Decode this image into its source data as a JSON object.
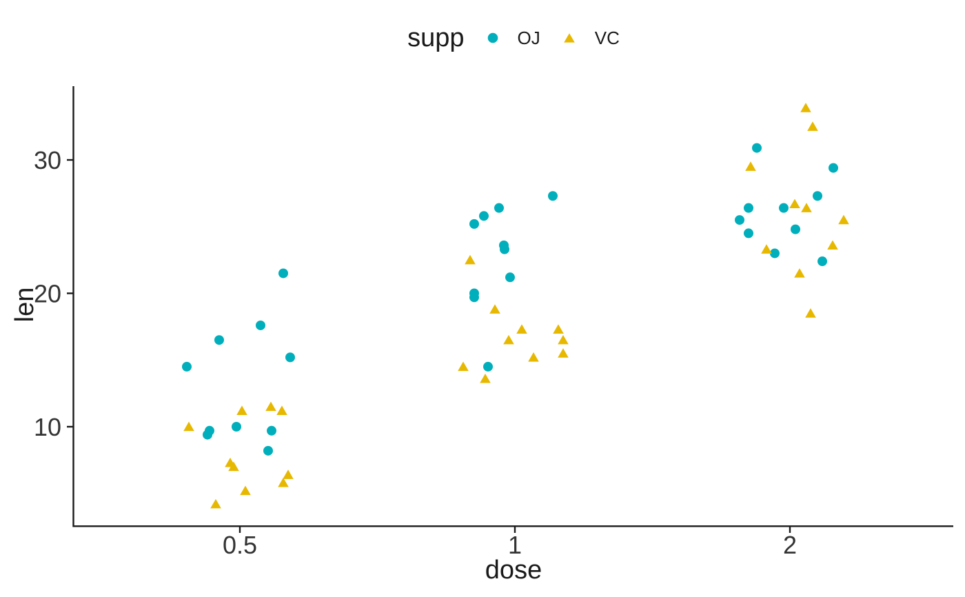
{
  "chart_data": {
    "type": "scatter",
    "title": "",
    "xlabel": "dose",
    "ylabel": "len",
    "legend_title": "supp",
    "legend_position": "top-center",
    "grid": false,
    "x_scale": "log2",
    "x_ticks": [
      0.5,
      1,
      2
    ],
    "x_tick_labels": [
      "0.5",
      "1",
      "2"
    ],
    "y_ticks": [
      10,
      20,
      30
    ],
    "y_tick_labels": [
      "10",
      "20",
      "30"
    ],
    "x_domain_px_note": "jitter offsets (j) are horizontal jitter around each dose position",
    "series": [
      {
        "name": "OJ",
        "marker": "circle",
        "color": "#00AFBB",
        "points": [
          {
            "dose": 0.5,
            "len": 21.5,
            "j": 63
          },
          {
            "dose": 0.5,
            "len": 17.6,
            "j": 30
          },
          {
            "dose": 0.5,
            "len": 16.5,
            "j": -30
          },
          {
            "dose": 0.5,
            "len": 15.2,
            "j": 73
          },
          {
            "dose": 0.5,
            "len": 14.5,
            "j": -77
          },
          {
            "dose": 0.5,
            "len": 10.0,
            "j": -5
          },
          {
            "dose": 0.5,
            "len": 9.7,
            "j": -44
          },
          {
            "dose": 0.5,
            "len": 9.7,
            "j": 46
          },
          {
            "dose": 0.5,
            "len": 9.4,
            "j": -47
          },
          {
            "dose": 0.5,
            "len": 8.2,
            "j": 41
          },
          {
            "dose": 1,
            "len": 27.3,
            "j": 55
          },
          {
            "dose": 1,
            "len": 26.4,
            "j": -23
          },
          {
            "dose": 1,
            "len": 25.8,
            "j": -45
          },
          {
            "dose": 1,
            "len": 25.2,
            "j": -59
          },
          {
            "dose": 1,
            "len": 23.6,
            "j": -16
          },
          {
            "dose": 1,
            "len": 23.3,
            "j": -15
          },
          {
            "dose": 1,
            "len": 21.2,
            "j": -7
          },
          {
            "dose": 1,
            "len": 20.0,
            "j": -59
          },
          {
            "dose": 1,
            "len": 19.7,
            "j": -59
          },
          {
            "dose": 1,
            "len": 14.5,
            "j": -39
          },
          {
            "dose": 2,
            "len": 30.9,
            "j": -48
          },
          {
            "dose": 2,
            "len": 29.4,
            "j": 63
          },
          {
            "dose": 2,
            "len": 27.3,
            "j": 40
          },
          {
            "dose": 2,
            "len": 26.4,
            "j": -60
          },
          {
            "dose": 2,
            "len": 26.4,
            "j": -9
          },
          {
            "dose": 2,
            "len": 25.5,
            "j": -73
          },
          {
            "dose": 2,
            "len": 24.8,
            "j": 8
          },
          {
            "dose": 2,
            "len": 24.5,
            "j": -60
          },
          {
            "dose": 2,
            "len": 23.0,
            "j": -22
          },
          {
            "dose": 2,
            "len": 22.4,
            "j": 47
          }
        ]
      },
      {
        "name": "VC",
        "marker": "triangle",
        "color": "#E7B800",
        "points": [
          {
            "dose": 0.5,
            "len": 11.5,
            "j": 45
          },
          {
            "dose": 0.5,
            "len": 11.2,
            "j": 3
          },
          {
            "dose": 0.5,
            "len": 11.2,
            "j": 61
          },
          {
            "dose": 0.5,
            "len": 10.0,
            "j": -74
          },
          {
            "dose": 0.5,
            "len": 7.3,
            "j": -14
          },
          {
            "dose": 0.5,
            "len": 7.0,
            "j": -9
          },
          {
            "dose": 0.5,
            "len": 6.4,
            "j": 70
          },
          {
            "dose": 0.5,
            "len": 5.8,
            "j": 63
          },
          {
            "dose": 0.5,
            "len": 5.2,
            "j": 8
          },
          {
            "dose": 0.5,
            "len": 4.2,
            "j": -35
          },
          {
            "dose": 1,
            "len": 22.5,
            "j": -65
          },
          {
            "dose": 1,
            "len": 18.8,
            "j": -29
          },
          {
            "dose": 1,
            "len": 17.3,
            "j": 10
          },
          {
            "dose": 1,
            "len": 17.3,
            "j": 63
          },
          {
            "dose": 1,
            "len": 16.5,
            "j": -9
          },
          {
            "dose": 1,
            "len": 16.5,
            "j": 70
          },
          {
            "dose": 1,
            "len": 15.5,
            "j": 70
          },
          {
            "dose": 1,
            "len": 15.2,
            "j": 27
          },
          {
            "dose": 1,
            "len": 14.5,
            "j": -75
          },
          {
            "dose": 1,
            "len": 13.6,
            "j": -43
          },
          {
            "dose": 2,
            "len": 33.9,
            "j": 23
          },
          {
            "dose": 2,
            "len": 32.5,
            "j": 33
          },
          {
            "dose": 2,
            "len": 29.5,
            "j": -57
          },
          {
            "dose": 2,
            "len": 26.7,
            "j": 7
          },
          {
            "dose": 2,
            "len": 26.4,
            "j": 24
          },
          {
            "dose": 2,
            "len": 25.5,
            "j": 78
          },
          {
            "dose": 2,
            "len": 23.6,
            "j": 62
          },
          {
            "dose": 2,
            "len": 23.3,
            "j": -34
          },
          {
            "dose": 2,
            "len": 21.5,
            "j": 14
          },
          {
            "dose": 2,
            "len": 18.5,
            "j": 30
          }
        ]
      }
    ]
  },
  "legend": {
    "title": "supp",
    "items": [
      {
        "label": "OJ",
        "marker": "circle"
      },
      {
        "label": "VC",
        "marker": "triangle"
      }
    ]
  },
  "axes": {
    "x_title": "dose",
    "y_title": "len",
    "x_tick_labels": [
      "0.5",
      "1",
      "2"
    ],
    "y_tick_labels": [
      "10",
      "20",
      "30"
    ]
  },
  "colors": {
    "oj": "#00AFBB",
    "vc": "#E7B800",
    "axis_line": "#1a1a1a",
    "tick_label": "#333333",
    "background": "#ffffff"
  }
}
